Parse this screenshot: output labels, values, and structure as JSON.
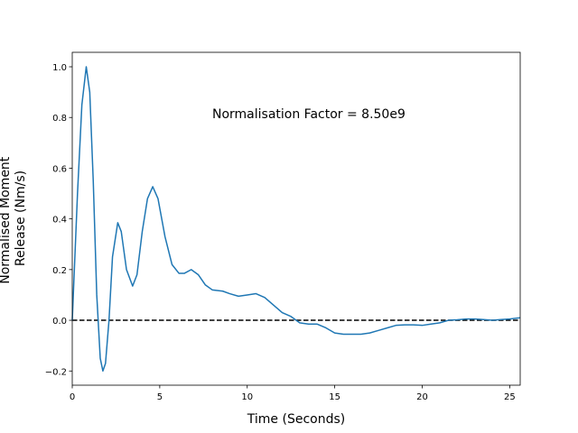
{
  "chart_data": {
    "type": "line",
    "annotation": "Normalisation Factor = 8.50e9",
    "xlabel": "Time (Seconds)",
    "ylabel": [
      "Normalised Moment",
      "Release (Nm/s)"
    ],
    "xlim": [
      0,
      25.6
    ],
    "ylim": [
      -0.256,
      1.057
    ],
    "xticks": [
      0,
      5,
      10,
      15,
      20,
      25
    ],
    "yticks": [
      {
        "value": -0.2,
        "label": "−0.2"
      },
      {
        "value": 0,
        "label": "0.0"
      },
      {
        "value": 0.2,
        "label": "0.2"
      },
      {
        "value": 0.4,
        "label": "0.4"
      },
      {
        "value": 0.6,
        "label": "0.6"
      },
      {
        "value": 0.8,
        "label": "0.8"
      },
      {
        "value": 1,
        "label": "1.0"
      }
    ],
    "reference_line": {
      "y": 0,
      "color": "#000000",
      "style": "dashed"
    },
    "x": [
      0,
      0.3,
      0.55,
      0.8,
      1.0,
      1.2,
      1.4,
      1.6,
      1.75,
      1.9,
      2.1,
      2.3,
      2.6,
      2.8,
      3.1,
      3.45,
      3.7,
      4.0,
      4.3,
      4.6,
      4.9,
      5.3,
      5.7,
      6.1,
      6.4,
      6.8,
      7.2,
      7.6,
      8.0,
      8.6,
      9.0,
      9.5,
      10.0,
      10.5,
      11.0,
      11.5,
      12.0,
      12.5,
      13.0,
      13.5,
      14.0,
      14.5,
      15.0,
      15.5,
      16.0,
      16.5,
      17.0,
      17.5,
      18.0,
      18.5,
      19.0,
      19.5,
      20.0,
      20.5,
      21.0,
      21.5,
      22.0,
      22.5,
      23.0,
      23.5,
      24.0,
      24.5,
      25.0,
      25.6
    ],
    "series": [
      {
        "name": "moment release",
        "color": "#1f77b4",
        "values": [
          0,
          0.5,
          0.85,
          1.0,
          0.9,
          0.55,
          0.1,
          -0.15,
          -0.2,
          -0.17,
          0,
          0.25,
          0.385,
          0.35,
          0.2,
          0.135,
          0.18,
          0.35,
          0.48,
          0.527,
          0.48,
          0.33,
          0.22,
          0.185,
          0.185,
          0.2,
          0.18,
          0.14,
          0.12,
          0.115,
          0.105,
          0.095,
          0.1,
          0.105,
          0.09,
          0.06,
          0.03,
          0.015,
          -0.01,
          -0.015,
          -0.015,
          -0.03,
          -0.05,
          -0.055,
          -0.055,
          -0.055,
          -0.05,
          -0.04,
          -0.03,
          -0.02,
          -0.018,
          -0.018,
          -0.02,
          -0.015,
          -0.01,
          0,
          0.002,
          0.005,
          0.005,
          0.003,
          0,
          0.003,
          0.005,
          0.01
        ]
      }
    ]
  }
}
